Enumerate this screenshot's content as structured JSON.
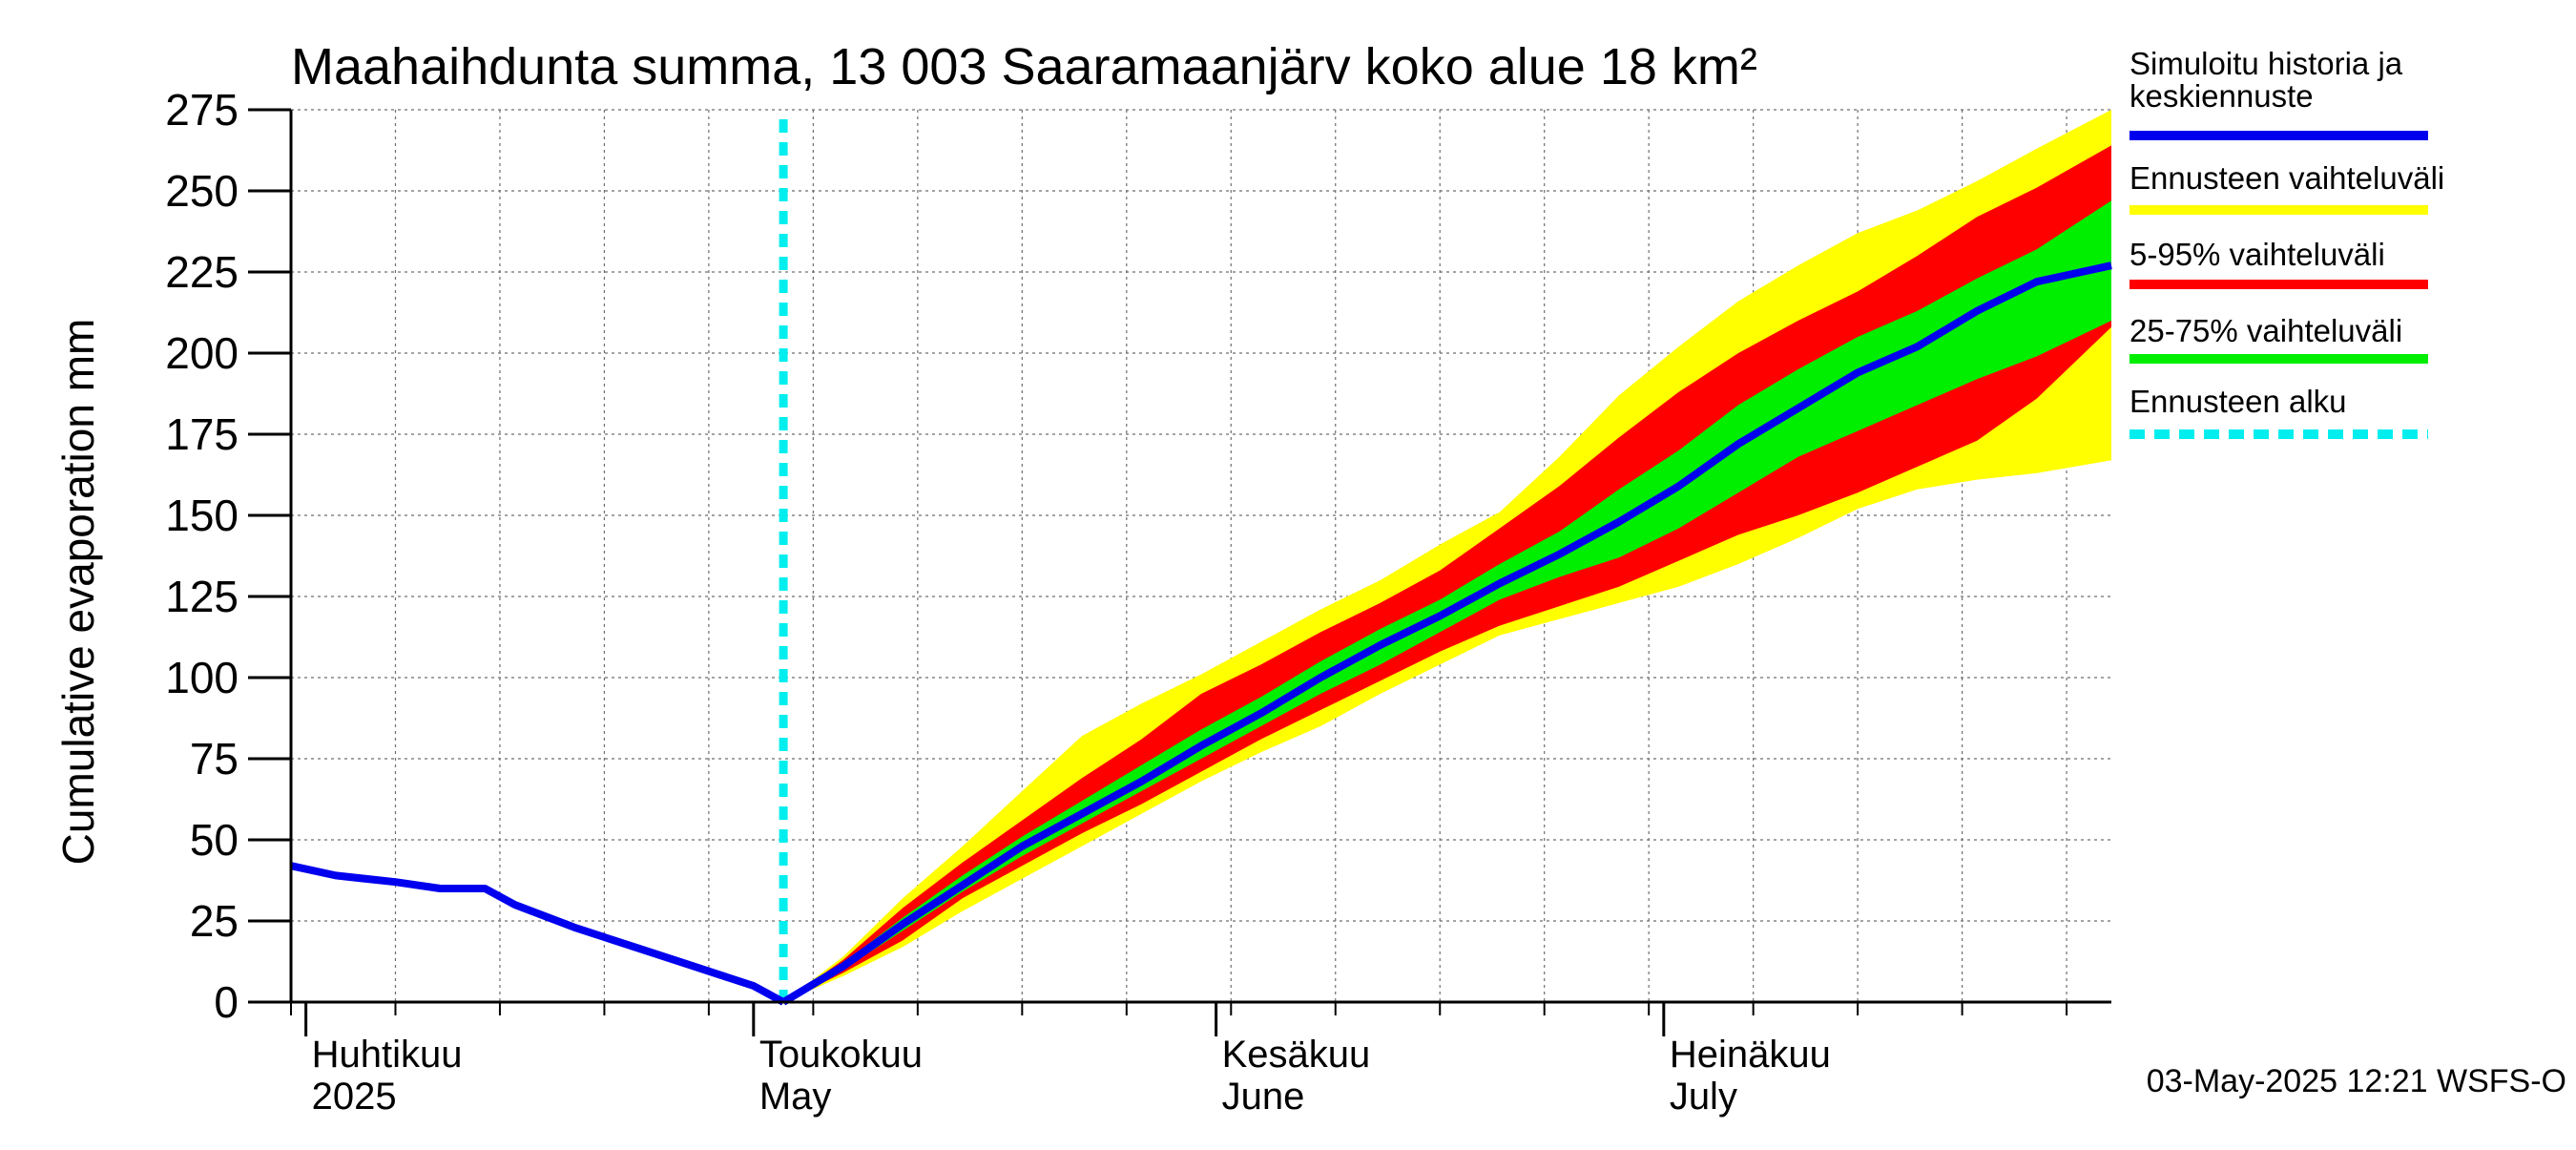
{
  "chart_data": {
    "type": "area",
    "title": "Maahaihdunta summa, 13 003 Saaramaanjärv koko alue 18 km²",
    "ylabel": "Cumulative evaporation   mm",
    "ylim": [
      0,
      275
    ],
    "yticks": [
      0,
      25,
      50,
      75,
      100,
      125,
      150,
      175,
      200,
      225,
      250,
      275
    ],
    "xlim": [
      "2025-03-31",
      "2025-07-31"
    ],
    "grid": true,
    "legend_placement": "right",
    "month_labels": [
      {
        "date": "2025-04-01",
        "line1": "Huhtikuu",
        "line2": "2025"
      },
      {
        "date": "2025-05-01",
        "line1": "Toukokuu",
        "line2": "May"
      },
      {
        "date": "2025-06-01",
        "line1": "Kesäkuu",
        "line2": "June"
      },
      {
        "date": "2025-07-01",
        "line1": "Heinäkuu",
        "line2": "July"
      }
    ],
    "forecast_start": "2025-05-03",
    "colors": {
      "median": "#0000ee",
      "range_full": "#ffff00",
      "range_5_95": "#ff0000",
      "range_25_75": "#00ee00",
      "forecast_start": "#00eeee"
    },
    "history": {
      "x": [
        "2025-03-31",
        "2025-04-03",
        "2025-04-07",
        "2025-04-10",
        "2025-04-13",
        "2025-04-15",
        "2025-04-19",
        "2025-04-23",
        "2025-04-27",
        "2025-05-01",
        "2025-05-03"
      ],
      "y": [
        42,
        39,
        37,
        35,
        35,
        30,
        23,
        17,
        11,
        5,
        0
      ]
    },
    "series": [
      {
        "name": "Simuloitu historia ja keskiennuste",
        "x": [
          "2025-05-03",
          "2025-05-07",
          "2025-05-11",
          "2025-05-15",
          "2025-05-19",
          "2025-05-23",
          "2025-05-27",
          "2025-05-31",
          "2025-06-04",
          "2025-06-08",
          "2025-06-12",
          "2025-06-16",
          "2025-06-20",
          "2025-06-24",
          "2025-06-28",
          "2025-07-02",
          "2025-07-06",
          "2025-07-10",
          "2025-07-14",
          "2025-07-18",
          "2025-07-22",
          "2025-07-26",
          "2025-07-31"
        ],
        "y": [
          0,
          11,
          24,
          36,
          48,
          58,
          68,
          79,
          89,
          100,
          110,
          119,
          129,
          138,
          148,
          159,
          172,
          183,
          194,
          202,
          213,
          222,
          227
        ]
      },
      {
        "name": "Ennusteen vaihteluväli",
        "x": [
          "2025-05-03",
          "2025-05-07",
          "2025-05-11",
          "2025-05-15",
          "2025-05-19",
          "2025-05-23",
          "2025-05-27",
          "2025-05-31",
          "2025-06-04",
          "2025-06-08",
          "2025-06-12",
          "2025-06-16",
          "2025-06-20",
          "2025-06-24",
          "2025-06-28",
          "2025-07-02",
          "2025-07-06",
          "2025-07-10",
          "2025-07-14",
          "2025-07-18",
          "2025-07-22",
          "2025-07-26",
          "2025-07-31"
        ],
        "lower": [
          0,
          8,
          17,
          28,
          38,
          48,
          58,
          68,
          77,
          85,
          95,
          104,
          113,
          118,
          123,
          128,
          135,
          143,
          152,
          158,
          161,
          163,
          167
        ],
        "upper": [
          0,
          14,
          32,
          48,
          65,
          82,
          92,
          101,
          111,
          121,
          130,
          141,
          151,
          168,
          187,
          202,
          216,
          227,
          237,
          244,
          253,
          263,
          275
        ]
      },
      {
        "name": "5-95% vaihteluväli",
        "x": [
          "2025-05-03",
          "2025-05-07",
          "2025-05-11",
          "2025-05-15",
          "2025-05-19",
          "2025-05-23",
          "2025-05-27",
          "2025-05-31",
          "2025-06-04",
          "2025-06-08",
          "2025-06-12",
          "2025-06-16",
          "2025-06-20",
          "2025-06-24",
          "2025-06-28",
          "2025-07-02",
          "2025-07-06",
          "2025-07-10",
          "2025-07-14",
          "2025-07-18",
          "2025-07-22",
          "2025-07-26",
          "2025-07-31"
        ],
        "lower": [
          0,
          9,
          19,
          32,
          42,
          52,
          61,
          71,
          81,
          90,
          99,
          108,
          116,
          122,
          128,
          136,
          144,
          150,
          157,
          165,
          173,
          186,
          208
        ],
        "upper": [
          0,
          13,
          29,
          43,
          56,
          69,
          81,
          95,
          104,
          114,
          123,
          133,
          146,
          159,
          174,
          188,
          200,
          210,
          219,
          230,
          242,
          251,
          264
        ]
      },
      {
        "name": "25-75% vaihteluväli",
        "x": [
          "2025-05-03",
          "2025-05-07",
          "2025-05-11",
          "2025-05-15",
          "2025-05-19",
          "2025-05-23",
          "2025-05-27",
          "2025-05-31",
          "2025-06-04",
          "2025-06-08",
          "2025-06-12",
          "2025-06-16",
          "2025-06-20",
          "2025-06-24",
          "2025-06-28",
          "2025-07-02",
          "2025-07-06",
          "2025-07-10",
          "2025-07-14",
          "2025-07-18",
          "2025-07-22",
          "2025-07-26",
          "2025-07-31"
        ],
        "lower": [
          0,
          10,
          22,
          34,
          45,
          55,
          65,
          75,
          85,
          95,
          104,
          114,
          124,
          131,
          137,
          146,
          157,
          168,
          176,
          184,
          192,
          199,
          210
        ],
        "upper": [
          0,
          12,
          26,
          39,
          51,
          62,
          73,
          84,
          94,
          105,
          115,
          124,
          135,
          145,
          158,
          170,
          184,
          195,
          205,
          213,
          223,
          232,
          247
        ]
      }
    ],
    "legend": [
      {
        "label": "Simuloitu historia ja keskiennuste",
        "color": "#0000ee",
        "style": "solid"
      },
      {
        "label": "Ennusteen vaihteluväli",
        "color": "#ffff00",
        "style": "solid"
      },
      {
        "label": "5-95% vaihteluväli",
        "color": "#ff0000",
        "style": "solid"
      },
      {
        "label": "25-75% vaihteluväli",
        "color": "#00ee00",
        "style": "solid"
      },
      {
        "label": "Ennusteen alku",
        "color": "#00eeee",
        "style": "dashed"
      }
    ],
    "footer": "03-May-2025 12:21 WSFS-O"
  }
}
